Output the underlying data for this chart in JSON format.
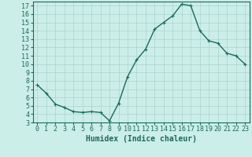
{
  "x": [
    0,
    1,
    2,
    3,
    4,
    5,
    6,
    7,
    8,
    9,
    10,
    11,
    12,
    13,
    14,
    15,
    16,
    17,
    18,
    19,
    20,
    21,
    22,
    23
  ],
  "y": [
    7.5,
    6.5,
    5.2,
    4.8,
    4.3,
    4.2,
    4.3,
    4.2,
    3.2,
    5.3,
    8.5,
    10.5,
    11.8,
    14.2,
    15.0,
    15.8,
    17.2,
    17.0,
    14.0,
    12.8,
    12.5,
    11.3,
    11.0,
    10.0
  ],
  "line_color": "#1a6b5a",
  "marker": "+",
  "marker_size": 3,
  "background_color": "#cceee8",
  "grid_color": "#aad4ce",
  "xlabel": "Humidex (Indice chaleur)",
  "xlim": [
    -0.5,
    23.5
  ],
  "ylim": [
    3,
    17.5
  ],
  "yticks": [
    3,
    4,
    5,
    6,
    7,
    8,
    9,
    10,
    11,
    12,
    13,
    14,
    15,
    16,
    17
  ],
  "xticks": [
    0,
    1,
    2,
    3,
    4,
    5,
    6,
    7,
    8,
    9,
    10,
    11,
    12,
    13,
    14,
    15,
    16,
    17,
    18,
    19,
    20,
    21,
    22,
    23
  ],
  "tick_color": "#1a6b5a",
  "label_color": "#1a6b5a",
  "font_size": 6,
  "xlabel_fontsize": 7,
  "line_width": 1.0,
  "marker_edge_width": 0.8
}
